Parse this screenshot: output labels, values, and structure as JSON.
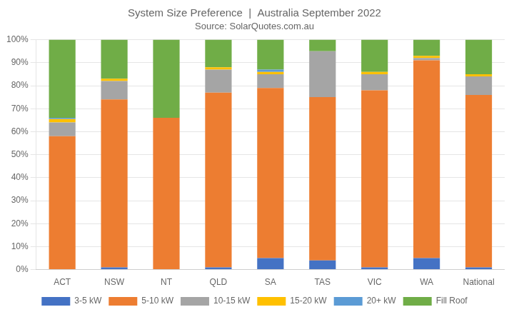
{
  "chart_data": {
    "type": "bar",
    "stacked": true,
    "title": "System Size Preference  |  Australia September 2022",
    "subtitle": "Source: SolarQuotes.com.au",
    "categories": [
      "ACT",
      "NSW",
      "NT",
      "QLD",
      "SA",
      "TAS",
      "VIC",
      "WA",
      "National"
    ],
    "series": [
      {
        "name": "3-5 kW",
        "color": "#4472c4",
        "values": [
          0,
          1,
          0,
          1,
          5,
          4,
          1,
          5,
          1
        ]
      },
      {
        "name": "5-10 kW",
        "color": "#ed7d31",
        "values": [
          58,
          73,
          66,
          76,
          74,
          71,
          77,
          86,
          75
        ]
      },
      {
        "name": "10-15 kW",
        "color": "#a5a5a5",
        "values": [
          6,
          8,
          0,
          10,
          6,
          20,
          7,
          1,
          8
        ]
      },
      {
        "name": "15-20 kW",
        "color": "#ffc000",
        "values": [
          1.5,
          1,
          0,
          1,
          1,
          0,
          1,
          1,
          1
        ]
      },
      {
        "name": "20+ kW",
        "color": "#5b9bd5",
        "values": [
          0.5,
          0,
          0,
          0,
          1,
          0,
          0,
          0,
          0
        ]
      },
      {
        "name": "Fill Roof",
        "color": "#70ad47",
        "values": [
          34,
          17,
          34,
          12,
          13,
          5,
          14,
          7,
          15
        ]
      }
    ],
    "ylim": [
      0,
      100
    ],
    "yticks": [
      {
        "value": 0,
        "label": "0%"
      },
      {
        "value": 10,
        "label": "10%"
      },
      {
        "value": 20,
        "label": "20%"
      },
      {
        "value": 30,
        "label": "30%"
      },
      {
        "value": 40,
        "label": "40%"
      },
      {
        "value": 50,
        "label": "50%"
      },
      {
        "value": 60,
        "label": "60%"
      },
      {
        "value": 70,
        "label": "70%"
      },
      {
        "value": 80,
        "label": "80%"
      },
      {
        "value": 90,
        "label": "90%"
      },
      {
        "value": 100,
        "label": "100%"
      }
    ],
    "grid": true,
    "legend": "bottom"
  }
}
